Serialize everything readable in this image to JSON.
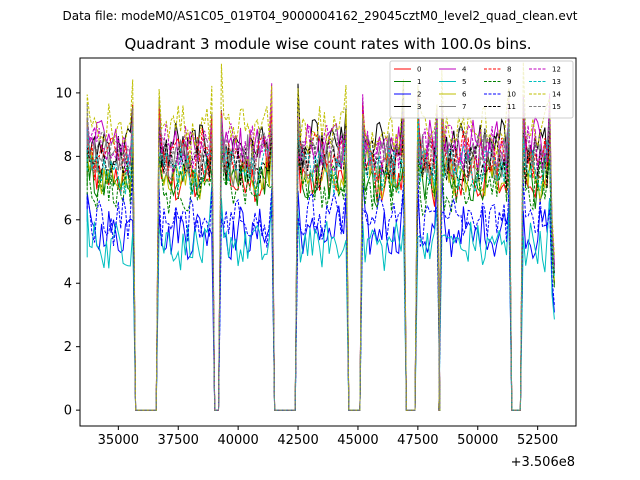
{
  "header": "Data file: modeM0/AS1C05_019T04_9000004162_29045cztM0_level2_quad_clean.evt",
  "chart_data": {
    "type": "line",
    "title": "Quadrant 3 module wise count rates with 100.0s bins.",
    "xlabel": "",
    "ylabel": "",
    "offset_label": "+3.506e8",
    "xlim": [
      33400,
      54100
    ],
    "ylim": [
      -0.5,
      11.1
    ],
    "xticks": [
      35000,
      37500,
      40000,
      42500,
      45000,
      47500,
      50000,
      52500
    ],
    "xtick_labels": [
      "35000",
      "37500",
      "40000",
      "42500",
      "45000",
      "47500",
      "50000",
      "52500"
    ],
    "yticks": [
      0,
      2,
      4,
      6,
      8,
      10
    ],
    "ytick_labels": [
      "0",
      "2",
      "4",
      "6",
      "8",
      "10"
    ],
    "orbit_segments": [
      [
        33700,
        35600
      ],
      [
        36700,
        38900
      ],
      [
        39300,
        41400
      ],
      [
        42500,
        44500
      ],
      [
        45200,
        46900
      ],
      [
        47500,
        48300
      ],
      [
        48500,
        51300
      ],
      [
        51900,
        53000
      ]
    ],
    "segments_note": "Count rate is ~0 during data gaps between segments; final segment ends with a drop near x=53200.",
    "legend_position": "top-right",
    "series": [
      {
        "name": "0",
        "color": "#ff0000",
        "dash": "solid",
        "mean": 7.3
      },
      {
        "name": "1",
        "color": "#008000",
        "dash": "solid",
        "mean": 7.2
      },
      {
        "name": "2",
        "color": "#0000ff",
        "dash": "solid",
        "mean": 5.6
      },
      {
        "name": "3",
        "color": "#000000",
        "dash": "solid",
        "mean": 8.3
      },
      {
        "name": "4",
        "color": "#bf00bf",
        "dash": "solid",
        "mean": 8.4
      },
      {
        "name": "5",
        "color": "#00bfbf",
        "dash": "solid",
        "mean": 5.2
      },
      {
        "name": "6",
        "color": "#bfbf00",
        "dash": "solid",
        "mean": 7.4
      },
      {
        "name": "7",
        "color": "#808080",
        "dash": "solid",
        "mean": 7.9
      },
      {
        "name": "8",
        "color": "#ff0000",
        "dash": "dashed",
        "mean": 8.0
      },
      {
        "name": "9",
        "color": "#008000",
        "dash": "dashed",
        "mean": 7.0
      },
      {
        "name": "10",
        "color": "#0000ff",
        "dash": "dashed",
        "mean": 6.0
      },
      {
        "name": "11",
        "color": "#000000",
        "dash": "dashed",
        "mean": 7.8
      },
      {
        "name": "12",
        "color": "#bf00bf",
        "dash": "dashed",
        "mean": 8.2
      },
      {
        "name": "13",
        "color": "#00bfbf",
        "dash": "dashed",
        "mean": 7.6
      },
      {
        "name": "14",
        "color": "#bfbf00",
        "dash": "dashed",
        "mean": 8.8
      },
      {
        "name": "15",
        "color": "#808080",
        "dash": "dashed",
        "mean": 8.1
      }
    ]
  }
}
